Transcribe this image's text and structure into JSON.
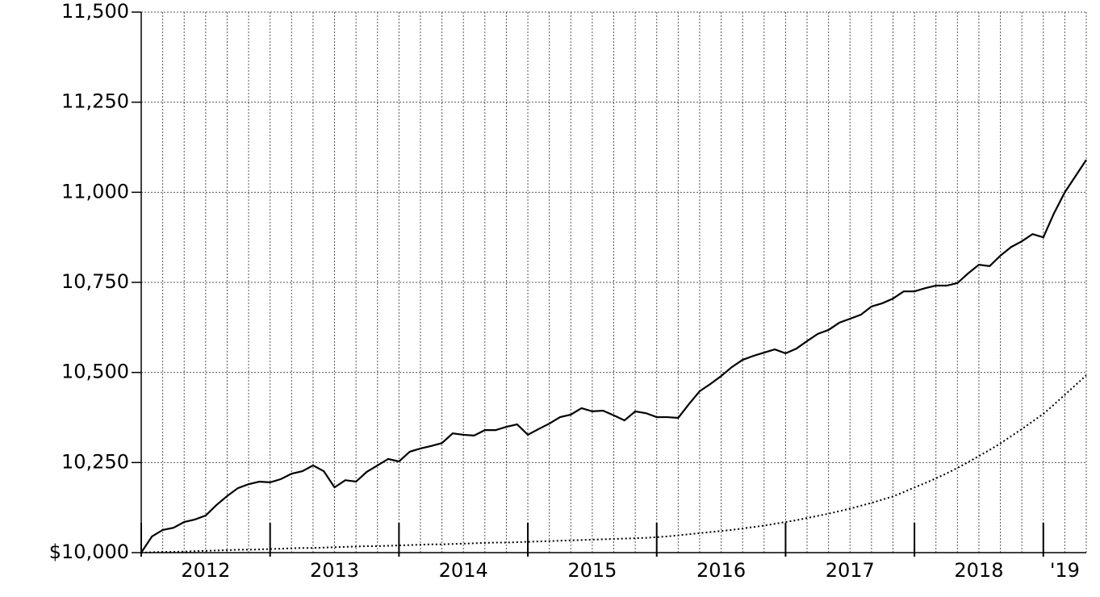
{
  "chart_data": {
    "type": "line",
    "categories": [
      null,
      null,
      null,
      null,
      null,
      null,
      "2012",
      null,
      null,
      null,
      null,
      null,
      null,
      null,
      null,
      null,
      null,
      null,
      "2013",
      null,
      null,
      null,
      null,
      null,
      null,
      null,
      null,
      null,
      null,
      null,
      "2014",
      null,
      null,
      null,
      null,
      null,
      null,
      null,
      null,
      null,
      null,
      null,
      "2015",
      null,
      null,
      null,
      null,
      null,
      null,
      null,
      null,
      null,
      null,
      null,
      "2016",
      null,
      null,
      null,
      null,
      null,
      null,
      null,
      null,
      null,
      null,
      null,
      "2017",
      null,
      null,
      null,
      null,
      null,
      null,
      null,
      null,
      null,
      null,
      null,
      "2018",
      null,
      null,
      null,
      null,
      null,
      null,
      null,
      "'19",
      null,
      null
    ],
    "series": [
      {
        "color": "#000000",
        "style": "solid",
        "values": [
          10000,
          10045,
          10063,
          10069,
          10085,
          10092,
          10103,
          10132,
          10157,
          10179,
          10190,
          10197,
          10195,
          10204,
          10219,
          10226,
          10242,
          10226,
          10181,
          10201,
          10197,
          10224,
          10242,
          10260,
          10253,
          10280,
          10289,
          10296,
          10304,
          10331,
          10327,
          10325,
          10340,
          10340,
          10349,
          10356,
          10327,
          10343,
          10358,
          10376,
          10383,
          10401,
          10392,
          10394,
          10381,
          10367,
          10392,
          10387,
          10376,
          10376,
          10374,
          10412,
          10448,
          10468,
          10490,
          10515,
          10535,
          10546,
          10555,
          10564,
          10553,
          10566,
          10587,
          10607,
          10618,
          10638,
          10649,
          10660,
          10683,
          10692,
          10705,
          10725,
          10725,
          10734,
          10741,
          10741,
          10748,
          10775,
          10799,
          10795,
          10824,
          10848,
          10864,
          10884,
          10875,
          10942,
          11000,
          11045,
          11090
        ]
      },
      {
        "color": "#000000",
        "style": "dotted",
        "values": [
          10000,
          10001,
          10002,
          10002,
          10003,
          10004,
          10005,
          10006,
          10007,
          10008,
          10008,
          10009,
          10010,
          10011,
          10012,
          10013,
          10013,
          10014,
          10015,
          10016,
          10017,
          10018,
          10018,
          10019,
          10020,
          10021,
          10022,
          10023,
          10023,
          10024,
          10025,
          10026,
          10027,
          10028,
          10028,
          10029,
          10030,
          10031,
          10032,
          10033,
          10034,
          10035,
          10036,
          10037,
          10038,
          10039,
          10040,
          10041,
          10043,
          10045,
          10048,
          10051,
          10054,
          10057,
          10060,
          10063,
          10067,
          10071,
          10075,
          10080,
          10085,
          10090,
          10096,
          10102,
          10108,
          10115,
          10122,
          10130,
          10138,
          10147,
          10156,
          10168,
          10181,
          10193,
          10206,
          10220,
          10235,
          10251,
          10268,
          10285,
          10303,
          10323,
          10343,
          10364,
          10385,
          10411,
          10438,
          10465,
          10492
        ]
      }
    ],
    "ylim": [
      10000,
      11500
    ],
    "yticks": [
      {
        "value": 10000,
        "label": "$10,000"
      },
      {
        "value": 10250,
        "label": "10,250"
      },
      {
        "value": 10500,
        "label": "10,500"
      },
      {
        "value": 10750,
        "label": "10,750"
      },
      {
        "value": 11000,
        "label": "11,000"
      },
      {
        "value": 11250,
        "label": "11,250"
      },
      {
        "value": 11500,
        "label": "11,500"
      }
    ],
    "grid": true
  }
}
